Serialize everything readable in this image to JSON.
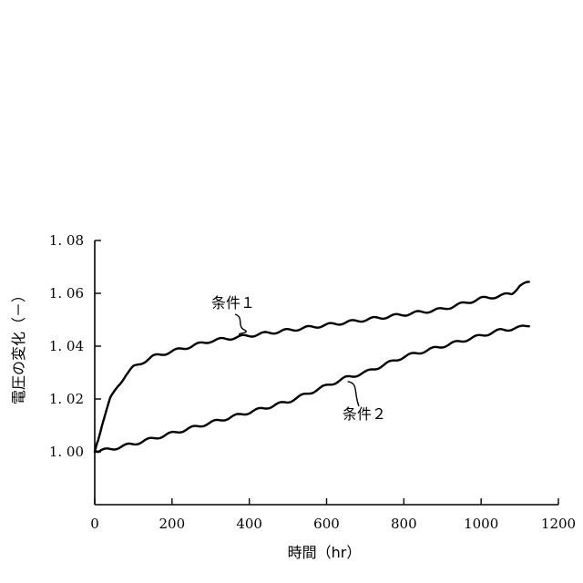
{
  "chart_data": {
    "type": "line",
    "xlabel": "時間（hr）",
    "ylabel": "電圧の変化（－）",
    "xlim": [
      0,
      1200
    ],
    "ylim": [
      0.98,
      1.08
    ],
    "xticks": [
      0,
      200,
      400,
      600,
      800,
      1000,
      1200
    ],
    "xtick_labels": [
      "0",
      "200",
      "400",
      "600",
      "800",
      "1000",
      "1200"
    ],
    "yticks": [
      1.0,
      1.02,
      1.04,
      1.06,
      1.08
    ],
    "ytick_labels": [
      "1. 00",
      "1. 02",
      "1. 04",
      "1. 06",
      "1. 08"
    ],
    "grid": false,
    "legend": "none",
    "series": [
      {
        "name": "条件１",
        "x": [
          0,
          20,
          40,
          60,
          80,
          100,
          150,
          200,
          250,
          300,
          350,
          400,
          450,
          500,
          550,
          600,
          650,
          700,
          750,
          800,
          850,
          900,
          950,
          1000,
          1050,
          1080,
          1100,
          1125
        ],
        "values": [
          1.0,
          1.011,
          1.02,
          1.025,
          1.029,
          1.032,
          1.036,
          1.038,
          1.04,
          1.042,
          1.043,
          1.044,
          1.045,
          1.046,
          1.047,
          1.048,
          1.049,
          1.05,
          1.051,
          1.052,
          1.053,
          1.054,
          1.056,
          1.058,
          1.059,
          1.06,
          1.063,
          1.064
        ]
      },
      {
        "name": "条件２",
        "x": [
          0,
          40,
          100,
          150,
          200,
          250,
          300,
          350,
          400,
          450,
          500,
          550,
          600,
          650,
          700,
          750,
          800,
          850,
          900,
          950,
          1000,
          1050,
          1100,
          1125
        ],
        "values": [
          1.0,
          1.001,
          1.003,
          1.005,
          1.007,
          1.009,
          1.011,
          1.013,
          1.015,
          1.017,
          1.019,
          1.022,
          1.025,
          1.028,
          1.03,
          1.033,
          1.036,
          1.038,
          1.04,
          1.042,
          1.044,
          1.046,
          1.047,
          1.048
        ]
      }
    ],
    "annotations": [
      {
        "text": "条件１",
        "series": 0,
        "at_x": 380
      },
      {
        "text": "条件２",
        "series": 1,
        "at_x": 650
      }
    ]
  }
}
